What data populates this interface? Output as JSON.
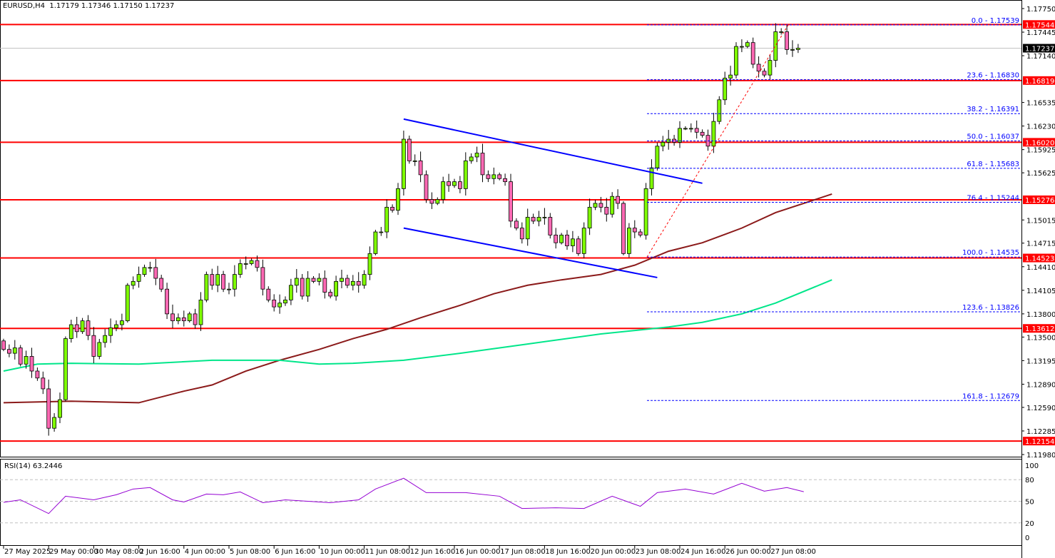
{
  "header": {
    "symbol_timeframe": "EURUSD,H4",
    "ohlc": "1.17179 1.17346 1.17150 1.17237"
  },
  "rsi_header": "RSI(14) 63.2446",
  "colors": {
    "bull": "#7fff00",
    "bear": "#ff69b4",
    "support_resistance": "#ff0000",
    "channel": "#0000ff",
    "fib": "#0000ff",
    "ma_slow": "#8b1a1a",
    "ma_fast": "#00e68a",
    "rsi": "#9400d3",
    "current_price_bg": "#000000"
  },
  "chart_data": {
    "type": "candlestick",
    "symbol": "EURUSD",
    "timeframe": "H4",
    "ylim": [
      1.1198,
      1.1775
    ],
    "y_ticks": [
      "1.17750",
      "1.17445",
      "1.17140",
      "1.16535",
      "1.16230",
      "1.15925",
      "1.15625",
      "1.15015",
      "1.14715",
      "1.14410",
      "1.14105",
      "1.13800",
      "1.13500",
      "1.13195",
      "1.12890",
      "1.12590",
      "1.12285",
      "1.11980"
    ],
    "x_ticks": [
      "27 May 2025",
      "29 May 00:00",
      "30 May 08:00",
      "2 Jun 16:00",
      "4 Jun 00:00",
      "5 Jun 08:00",
      "6 Jun 16:00",
      "10 Jun 00:00",
      "11 Jun 08:00",
      "12 Jun 16:00",
      "16 Jun 00:00",
      "17 Jun 08:00",
      "18 Jun 16:00",
      "20 Jun 00:00",
      "23 Jun 08:00",
      "24 Jun 16:00",
      "26 Jun 00:00",
      "27 Jun 08:00"
    ],
    "first_open": 1.1345,
    "closes": [
      1.1334,
      1.1329,
      1.1336,
      1.1315,
      1.1325,
      1.1306,
      1.1297,
      1.1283,
      1.1232,
      1.1246,
      1.1269,
      1.1348,
      1.1366,
      1.1357,
      1.1371,
      1.1352,
      1.1325,
      1.1343,
      1.1352,
      1.1362,
      1.1366,
      1.1371,
      1.1417,
      1.1422,
      1.1431,
      1.144,
      1.144,
      1.1426,
      1.1412,
      1.138,
      1.1371,
      1.1375,
      1.1371,
      1.138,
      1.1366,
      1.1398,
      1.1431,
      1.1417,
      1.1431,
      1.1412,
      1.1412,
      1.1431,
      1.1445,
      1.1445,
      1.1449,
      1.144,
      1.1412,
      1.1398,
      1.1389,
      1.1394,
      1.1398,
      1.1417,
      1.1426,
      1.1403,
      1.1426,
      1.1422,
      1.1426,
      1.1408,
      1.1403,
      1.1422,
      1.1426,
      1.1417,
      1.1422,
      1.1417,
      1.1431,
      1.1458,
      1.1486,
      1.1486,
      1.1518,
      1.1514,
      1.1542,
      1.1606,
      1.1578,
      1.1578,
      1.156,
      1.1528,
      1.1523,
      1.1528,
      1.1551,
      1.1546,
      1.1551,
      1.1542,
      1.1578,
      1.1583,
      1.1588,
      1.156,
      1.1555,
      1.156,
      1.1555,
      1.1551,
      1.15,
      1.1491,
      1.1477,
      1.1505,
      1.15,
      1.1505,
      1.1505,
      1.1482,
      1.1472,
      1.1482,
      1.1468,
      1.1477,
      1.1458,
      1.1491,
      1.1518,
      1.1523,
      1.1518,
      1.1509,
      1.1532,
      1.1523,
      1.1458,
      1.1491,
      1.1486,
      1.1482,
      1.1542,
      1.1569,
      1.1597,
      1.1602,
      1.1606,
      1.1602,
      1.162,
      1.162,
      1.162,
      1.1615,
      1.1611,
      1.1597,
      1.1629,
      1.1657,
      1.1685,
      1.1689,
      1.1726,
      1.1726,
      1.1731,
      1.1703,
      1.1694,
      1.1689,
      1.1708,
      1.1745,
      1.1745,
      1.1722,
      1.1722,
      1.17237
    ],
    "current_price": "1.17237",
    "horizontal_levels": [
      "1.17544",
      "1.16819",
      "1.16020",
      "1.15276",
      "1.14523",
      "1.13612",
      "1.12154"
    ],
    "fibonacci": {
      "from_price": 1.14535,
      "to_price": 1.17539,
      "levels": [
        "0.0 - 1.17539",
        "23.6 - 1.16830",
        "38.2 - 1.16391",
        "50.0 - 1.16037",
        "61.8 - 1.15683",
        "76.4 - 1.15244",
        "100.0 - 1.14535",
        "123.6 - 1.13826",
        "161.8 - 1.12679"
      ],
      "prices": [
        1.17539,
        1.1683,
        1.16391,
        1.16037,
        1.15683,
        1.15244,
        1.14535,
        1.13826,
        1.12679
      ]
    },
    "channel": {
      "upper": [
        [
          71,
          1.1632
        ],
        [
          124,
          1.1549
        ]
      ],
      "lower": [
        [
          71,
          1.1491
        ],
        [
          116,
          1.1427
        ]
      ]
    },
    "ma_slow": [
      [
        0,
        1.1265
      ],
      [
        12,
        1.1267
      ],
      [
        24,
        1.1265
      ],
      [
        32,
        1.128
      ],
      [
        37,
        1.1288
      ],
      [
        43,
        1.1306
      ],
      [
        49,
        1.132
      ],
      [
        56,
        1.1334
      ],
      [
        62,
        1.1348
      ],
      [
        68,
        1.136
      ],
      [
        74,
        1.1375
      ],
      [
        81,
        1.1391
      ],
      [
        87,
        1.1406
      ],
      [
        93,
        1.1417
      ],
      [
        99,
        1.1424
      ],
      [
        106,
        1.1431
      ],
      [
        112,
        1.1443
      ],
      [
        118,
        1.1461
      ],
      [
        124,
        1.1472
      ],
      [
        131,
        1.1491
      ],
      [
        137,
        1.1511
      ],
      [
        147,
        1.1535
      ]
    ],
    "ma_fast": [
      [
        0,
        1.1306
      ],
      [
        6,
        1.1315
      ],
      [
        12,
        1.1316
      ],
      [
        24,
        1.1315
      ],
      [
        37,
        1.132
      ],
      [
        49,
        1.132
      ],
      [
        56,
        1.1315
      ],
      [
        62,
        1.1316
      ],
      [
        71,
        1.132
      ],
      [
        81,
        1.1329
      ],
      [
        93,
        1.1341
      ],
      [
        106,
        1.1354
      ],
      [
        118,
        1.1363
      ],
      [
        124,
        1.1369
      ],
      [
        131,
        1.138
      ],
      [
        137,
        1.1394
      ],
      [
        147,
        1.1424
      ]
    ],
    "rsi": {
      "period": 14,
      "value": "63.2446",
      "ylim": [
        0,
        100
      ],
      "levels": [
        "100",
        "80",
        "50",
        "20",
        "0"
      ],
      "points": [
        [
          0,
          48.5
        ],
        [
          3,
          52
        ],
        [
          8,
          33
        ],
        [
          11,
          57
        ],
        [
          16,
          52
        ],
        [
          20,
          59
        ],
        [
          23,
          67
        ],
        [
          26,
          69
        ],
        [
          30,
          52
        ],
        [
          32,
          49
        ],
        [
          36,
          60
        ],
        [
          39,
          59
        ],
        [
          42,
          63
        ],
        [
          46,
          48
        ],
        [
          50,
          52
        ],
        [
          54,
          50
        ],
        [
          58,
          48
        ],
        [
          63,
          52
        ],
        [
          66,
          67
        ],
        [
          71,
          82
        ],
        [
          75,
          62
        ],
        [
          82,
          62
        ],
        [
          88,
          57
        ],
        [
          92,
          40
        ],
        [
          98,
          41
        ],
        [
          103,
          40
        ],
        [
          108,
          57
        ],
        [
          113,
          43
        ],
        [
          116,
          62
        ],
        [
          121,
          67
        ],
        [
          126,
          60
        ],
        [
          131,
          75
        ],
        [
          135,
          64
        ],
        [
          139,
          69
        ],
        [
          142,
          63.2
        ]
      ]
    }
  }
}
